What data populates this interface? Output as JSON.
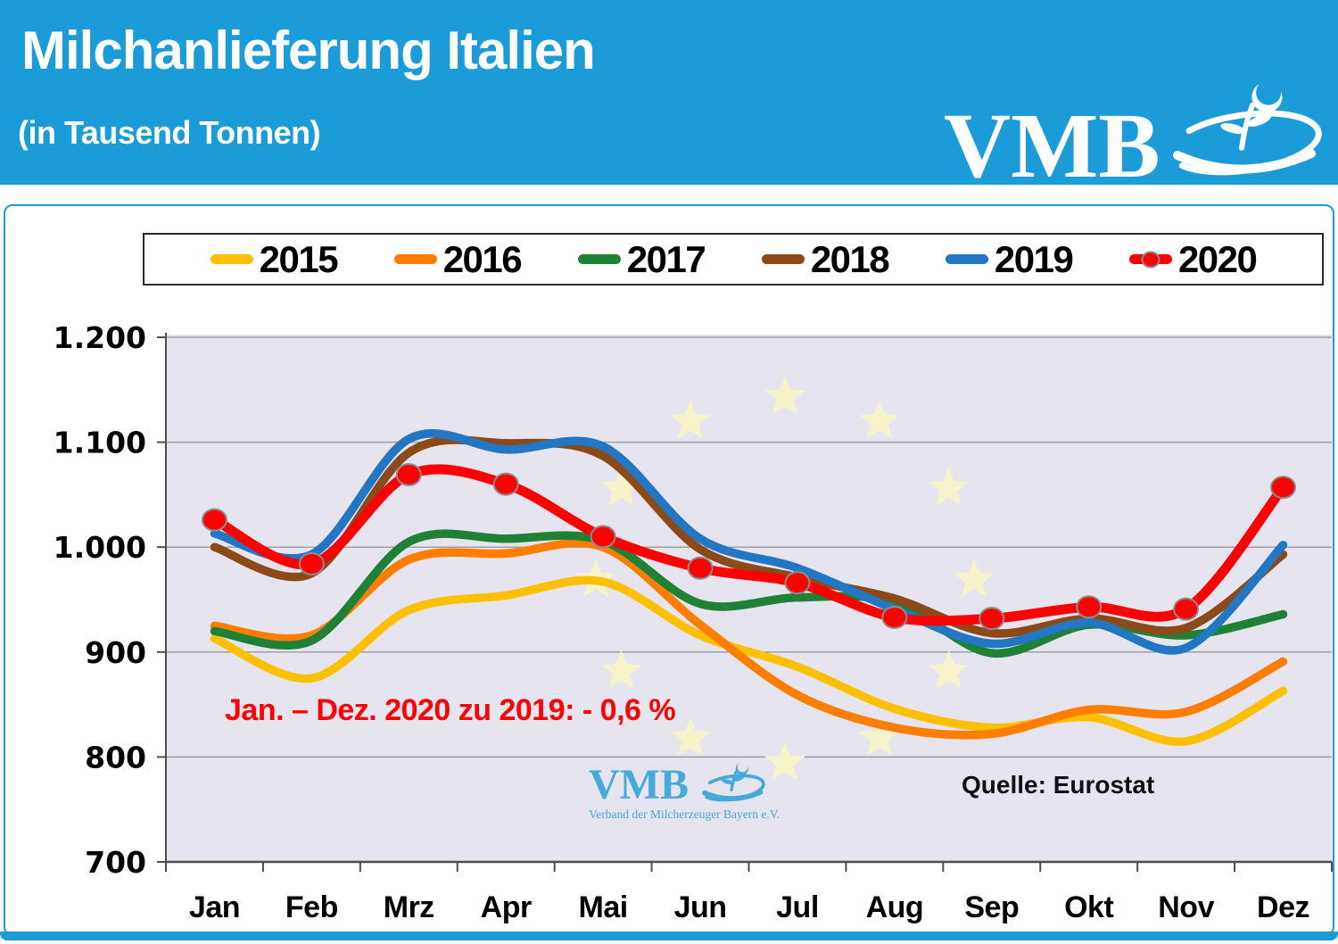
{
  "header": {
    "title": "Milchanlieferung Italien",
    "subtitle": "(in Tausend Tonnen)",
    "brand": "VMB",
    "bg_color": "#1B9CD8"
  },
  "annotation": {
    "text": "Jan. – Dez. 2020 zu 2019: - 0,6 %",
    "color": "#FF0000"
  },
  "source_label": "Quelle: Eurostat",
  "watermark": {
    "brand": "VMB",
    "subtext": "Verband der Milcherzeuger Bayern e.V.",
    "color": "#45A9DA"
  },
  "chart_data": {
    "type": "line",
    "title": "Milchanlieferung Italien (in Tausend Tonnen)",
    "categories": [
      "Jan",
      "Feb",
      "Mrz",
      "Apr",
      "Mai",
      "Jun",
      "Jul",
      "Aug",
      "Sep",
      "Okt",
      "Nov",
      "Dez"
    ],
    "y_tick_labels": [
      "1.200",
      "1.100",
      "1.000",
      "900",
      "800",
      "700"
    ],
    "y_tick_values": [
      1200,
      1100,
      1000,
      900,
      800,
      700
    ],
    "ylim": [
      700,
      1200
    ],
    "grid": true,
    "legend_position": "top",
    "plot_bg": "#E6E5EF",
    "grid_color": "#A0A0A0",
    "axis_color": "#4D4D4D",
    "eu_stars_color": "#F6F3CB",
    "series": [
      {
        "name": "2015",
        "color": "#FFC000",
        "marker": false,
        "values": [
          913,
          875,
          940,
          954,
          967,
          916,
          886,
          846,
          828,
          838,
          815,
          863
        ]
      },
      {
        "name": "2016",
        "color": "#FF7E00",
        "marker": false,
        "values": [
          925,
          916,
          988,
          994,
          1000,
          926,
          859,
          828,
          822,
          845,
          843,
          891
        ]
      },
      {
        "name": "2017",
        "color": "#1F8135",
        "marker": false,
        "values": [
          920,
          911,
          1005,
          1008,
          1006,
          946,
          952,
          948,
          899,
          926,
          916,
          936
        ]
      },
      {
        "name": "2018",
        "color": "#8B4A17",
        "marker": false,
        "values": [
          1000,
          975,
          1090,
          1099,
          1087,
          998,
          971,
          951,
          918,
          932,
          923,
          993
        ]
      },
      {
        "name": "2019",
        "color": "#2277C4",
        "marker": false,
        "values": [
          1013,
          993,
          1103,
          1093,
          1096,
          1008,
          980,
          941,
          908,
          928,
          904,
          1002
        ]
      },
      {
        "name": "2020",
        "color": "#FE0000",
        "marker": true,
        "values": [
          1026,
          984,
          1069,
          1060,
          1010,
          980,
          966,
          933,
          932,
          943,
          941,
          1057
        ]
      }
    ]
  }
}
